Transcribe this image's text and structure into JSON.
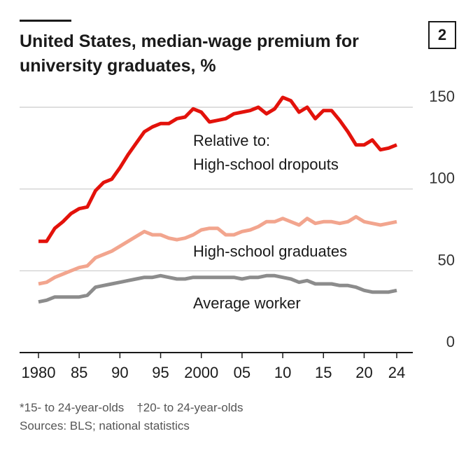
{
  "chart_data": {
    "type": "line",
    "title": "United States, median-wage premium for university graduates, %",
    "title_lines": [
      "United States, median-wage premium for",
      "university graduates, %"
    ],
    "badge": "2",
    "xlabel": "",
    "ylabel": "",
    "ylim": [
      0,
      150
    ],
    "xlim": [
      1980,
      2024
    ],
    "yticks": [
      0,
      50,
      100,
      150
    ],
    "ytick_labels": [
      "0",
      "50",
      "100",
      "150"
    ],
    "xticks": [
      1980,
      1985,
      1990,
      1995,
      2000,
      2005,
      2010,
      2015,
      2020,
      2024
    ],
    "xtick_labels": [
      "1980",
      "85",
      "90",
      "95",
      "2000",
      "05",
      "10",
      "15",
      "20",
      "24"
    ],
    "grid": "horizontal",
    "x": [
      1980,
      1981,
      1982,
      1983,
      1984,
      1985,
      1986,
      1987,
      1988,
      1989,
      1990,
      1991,
      1992,
      1993,
      1994,
      1995,
      1996,
      1997,
      1998,
      1999,
      2000,
      2001,
      2002,
      2003,
      2004,
      2005,
      2006,
      2007,
      2008,
      2009,
      2010,
      2011,
      2012,
      2013,
      2014,
      2015,
      2016,
      2017,
      2018,
      2019,
      2020,
      2021,
      2022,
      2023,
      2024
    ],
    "series": [
      {
        "name": "High-school dropouts",
        "color": "#e3120b",
        "values": [
          68,
          68,
          76,
          80,
          85,
          88,
          89,
          99,
          104,
          106,
          113,
          121,
          128,
          135,
          138,
          140,
          140,
          143,
          144,
          149,
          147,
          141,
          142,
          143,
          146,
          147,
          148,
          150,
          146,
          149,
          156,
          154,
          147,
          150,
          143,
          148,
          148,
          142,
          135,
          127,
          127,
          130,
          124,
          125,
          127
        ]
      },
      {
        "name": "High-school graduates",
        "color": "#f2a58e",
        "values": [
          42,
          43,
          46,
          48,
          50,
          52,
          53,
          58,
          60,
          62,
          65,
          68,
          71,
          74,
          72,
          72,
          70,
          69,
          70,
          72,
          75,
          76,
          76,
          72,
          72,
          74,
          75,
          77,
          80,
          80,
          82,
          80,
          78,
          82,
          79,
          80,
          80,
          79,
          80,
          83,
          80,
          79,
          78,
          79,
          80
        ]
      },
      {
        "name": "Average worker",
        "color": "#8c8c8c",
        "values": [
          31,
          32,
          34,
          34,
          34,
          34,
          35,
          40,
          41,
          42,
          43,
          44,
          45,
          46,
          46,
          47,
          46,
          45,
          45,
          46,
          46,
          46,
          46,
          46,
          46,
          45,
          46,
          46,
          47,
          47,
          46,
          45,
          43,
          44,
          42,
          42,
          42,
          41,
          41,
          40,
          38,
          37,
          37,
          37,
          38
        ]
      }
    ],
    "annotations": {
      "relative_to": "Relative to:",
      "dropouts": "High-school dropouts",
      "graduates": "High-school graduates",
      "average": "Average worker"
    }
  },
  "footnotes": {
    "note1": "*15- to 24-year-olds",
    "note2": "†20- to 24-year-olds",
    "sources": "Sources: BLS; national statistics"
  }
}
